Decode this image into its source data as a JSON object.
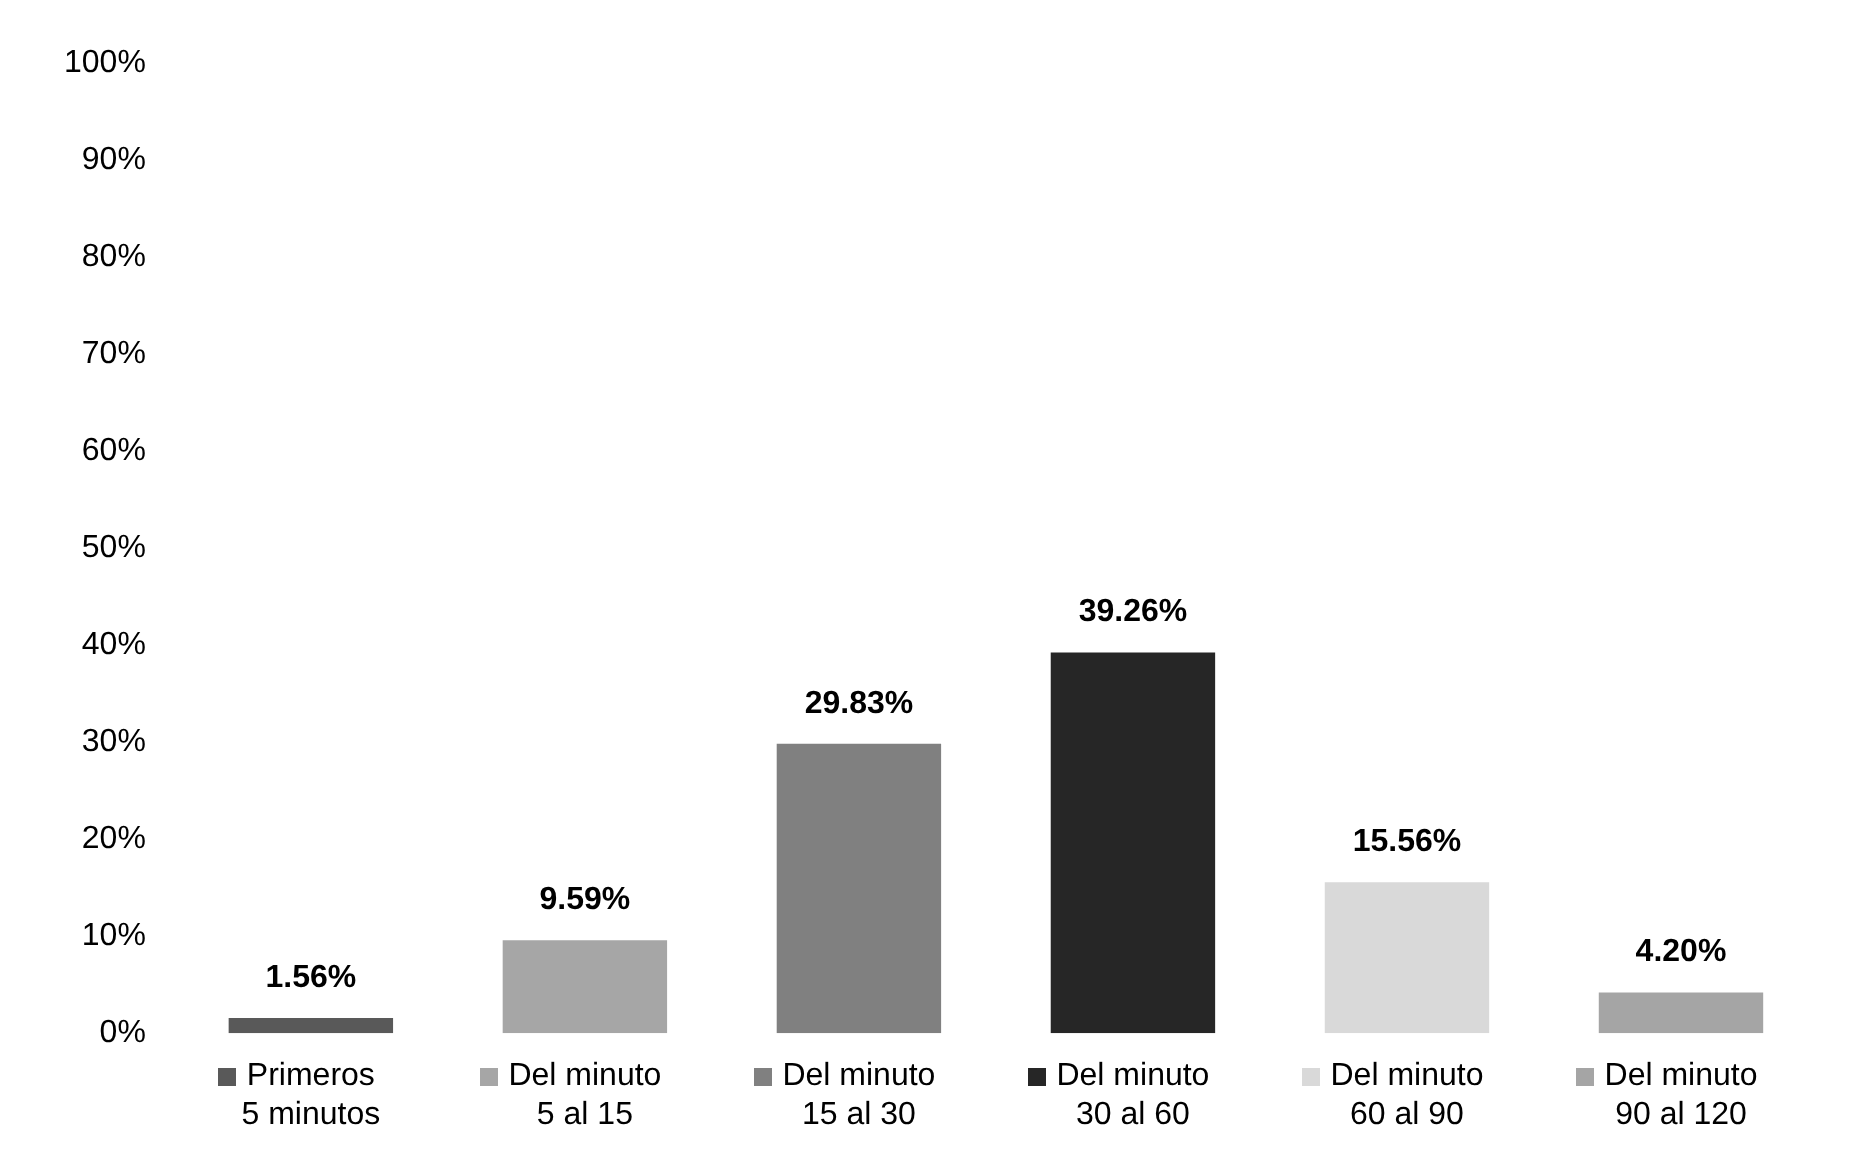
{
  "chart_data": {
    "type": "bar",
    "categories": [
      "Primeros 5 minutos",
      "Del minuto 5 al 15",
      "Del minuto 15 al 30",
      "Del minuto 30 al 60",
      "Del minuto 60 al 90",
      "Del minuto 90 al 120"
    ],
    "values": [
      1.56,
      9.59,
      29.83,
      39.26,
      15.56,
      4.2
    ],
    "value_labels": [
      "1.56%",
      "9.59%",
      "29.83%",
      "39.26%",
      "15.56%",
      "4.20%"
    ],
    "colors": [
      "#595959",
      "#a6a6a6",
      "#808080",
      "#262626",
      "#d9d9d9",
      "#a5a5a5"
    ],
    "ylim": [
      0,
      100
    ],
    "yticks": [
      {
        "value": 0,
        "label": "0%"
      },
      {
        "value": 10,
        "label": "10%"
      },
      {
        "value": 20,
        "label": "20%"
      },
      {
        "value": 30,
        "label": "30%"
      },
      {
        "value": 40,
        "label": "40%"
      },
      {
        "value": 50,
        "label": "50%"
      },
      {
        "value": 60,
        "label": "60%"
      },
      {
        "value": 70,
        "label": "70%"
      },
      {
        "value": 80,
        "label": "80%"
      },
      {
        "value": 90,
        "label": "90%"
      },
      {
        "value": 100,
        "label": "100%"
      }
    ],
    "grid": false
  }
}
